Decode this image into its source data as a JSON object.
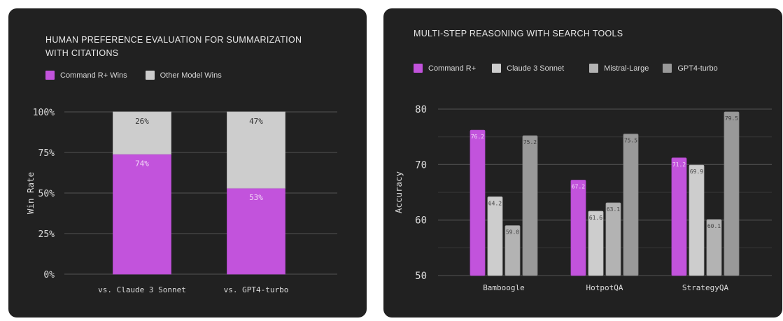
{
  "colors": {
    "panel_bg": "#212121",
    "grid": "#4a4a4a",
    "command_r_plus": "#c253dc",
    "claude_3_sonnet": "#cdcdcd",
    "mistral_large": "#b3b3b3",
    "gpt4_turbo": "#999999",
    "other_model": "#cdcdcd"
  },
  "chart_data": [
    {
      "type": "bar",
      "stacked": true,
      "title": "HUMAN PREFERENCE EVALUATION FOR SUMMARIZATION WITH CITATIONS",
      "title_lines": [
        "HUMAN PREFERENCE EVALUATION FOR SUMMARIZATION",
        "WITH CITATIONS"
      ],
      "xlabel": "",
      "ylabel": "Win Rate",
      "ylim": [
        0,
        100
      ],
      "yticks": [
        0,
        25,
        50,
        75,
        100
      ],
      "ytick_labels": [
        "0%",
        "25%",
        "50%",
        "75%",
        "100%"
      ],
      "grid": true,
      "legend_position": "top-left",
      "categories": [
        "vs. Claude 3 Sonnet",
        "vs. GPT4-turbo"
      ],
      "series": [
        {
          "name": "Command R+ Wins",
          "values": [
            74,
            53
          ],
          "labels": [
            "74%",
            "53%"
          ]
        },
        {
          "name": "Other Model Wins",
          "values": [
            26,
            47
          ],
          "labels": [
            "26%",
            "47%"
          ]
        }
      ]
    },
    {
      "type": "bar",
      "stacked": false,
      "title": "MULTI-STEP REASONING WITH SEARCH TOOLS",
      "xlabel": "",
      "ylabel": "Accuracy",
      "ylim": [
        50,
        80
      ],
      "yticks": [
        50,
        60,
        70,
        80
      ],
      "ytick_labels": [
        "50",
        "60",
        "70",
        "80"
      ],
      "minor_grid": [
        55,
        65,
        75
      ],
      "grid": true,
      "legend_position": "top-left",
      "categories": [
        "Bamboogle",
        "HotpotQA",
        "StrategyQA"
      ],
      "series": [
        {
          "name": "Command R+",
          "values": [
            76.2,
            67.2,
            71.2
          ],
          "labels": [
            "76.2",
            "67.2",
            "71.2"
          ]
        },
        {
          "name": "Claude 3 Sonnet",
          "values": [
            64.2,
            61.6,
            69.9
          ],
          "labels": [
            "64.2",
            "61.6",
            "69.9"
          ]
        },
        {
          "name": "Mistral-Large",
          "values": [
            59.0,
            63.1,
            60.1
          ],
          "labels": [
            "59.0",
            "63.1",
            "60.1"
          ]
        },
        {
          "name": "GPT4-turbo",
          "values": [
            75.2,
            75.5,
            79.5
          ],
          "labels": [
            "75.2",
            "75.5",
            "79.5"
          ]
        }
      ]
    }
  ]
}
